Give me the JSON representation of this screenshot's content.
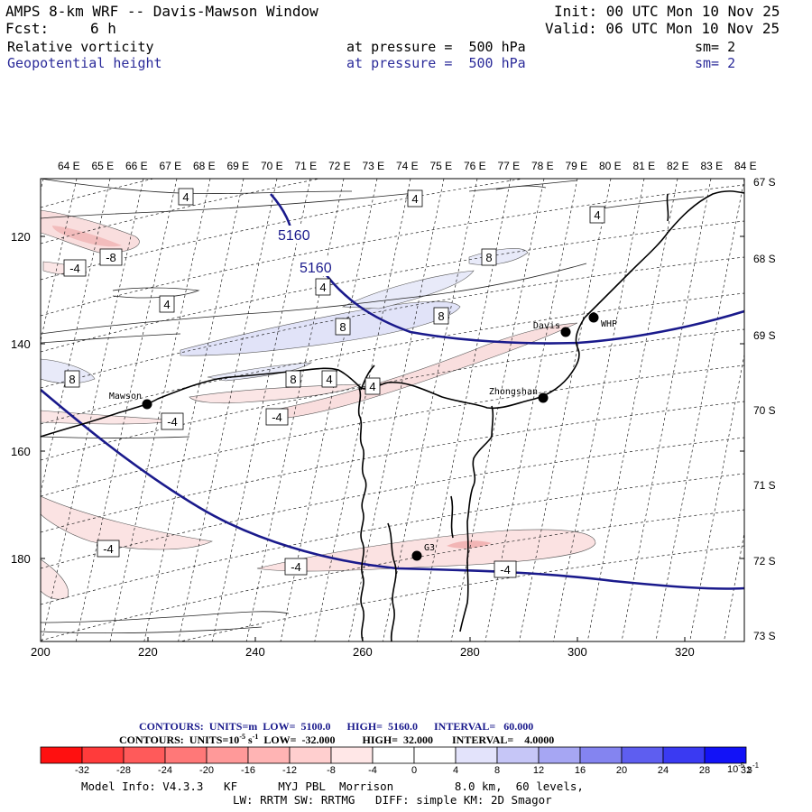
{
  "header": {
    "title": "AMPS 8-km WRF -- Davis-Mawson Window",
    "forecast_label": "Fcst:",
    "forecast_value": "6 h",
    "init": "Init: 00 UTC Mon 10 Nov 25",
    "valid": "Valid: 06 UTC Mon 10 Nov 25",
    "field1_name": "Relative vorticity",
    "field1_level": "at pressure =  500 hPa",
    "field1_sm": "sm= 2",
    "field2_name": "Geopotential height",
    "field2_level": "at pressure =  500 hPa",
    "field2_sm": "sm= 2"
  },
  "map": {
    "lon_labels": [
      "64 E",
      "65 E",
      "66 E",
      "67 E",
      "68 E",
      "69 E",
      "70 E",
      "71 E",
      "72 E",
      "73 E",
      "74 E",
      "75 E",
      "76 E",
      "77 E",
      "78 E",
      "79 E",
      "80 E",
      "81 E",
      "82 E",
      "83 E",
      "84 E"
    ],
    "lat_labels": [
      "67 S",
      "68 S",
      "69 S",
      "70 S",
      "71 S",
      "72 S",
      "73 S"
    ],
    "y_ticks": [
      "120",
      "140",
      "160",
      "180"
    ],
    "x_ticks": [
      "200",
      "220",
      "240",
      "260",
      "280",
      "300",
      "320"
    ],
    "stations": [
      {
        "name": "Mawson"
      },
      {
        "name": "Davis"
      },
      {
        "name": "WHP"
      },
      {
        "name": "Zhongshan"
      },
      {
        "name": "G3"
      }
    ],
    "height_contour_labels": [
      "5160",
      "5160"
    ],
    "vorticity_labels": [
      "4",
      "4",
      "4",
      "4",
      "4",
      "4",
      "4",
      "8",
      "8",
      "8",
      "8",
      "8",
      "-4",
      "-8",
      "-4",
      "-4",
      "-4",
      "-4",
      "-4"
    ],
    "colors": {
      "height_contour": "#1a1a8c",
      "coast": "#000000",
      "positive_shade": "#dde0f7",
      "negative_shade": "#f9dcdc"
    }
  },
  "colorbar": {
    "contours_line1": "CONTOURS:  UNITS=m  LOW=  5100.0      HIGH=  5160.0      INTERVAL=   60.000",
    "contours_line2_a": "CONTOURS:  UNITS=10",
    "contours_line2_exp": "-5",
    "contours_line2_b": " s",
    "contours_line2_exp2": "-1",
    "contours_line2_c": "  LOW=  -32.000          HIGH=  32.000       INTERVAL=    4.0000",
    "ticks": [
      "-32",
      "-28",
      "-24",
      "-20",
      "-16",
      "-12",
      "-8",
      "-4",
      "0",
      "4",
      "8",
      "12",
      "16",
      "20",
      "24",
      "28",
      "32"
    ],
    "units_a": "10",
    "units_exp": "-5",
    "units_b": " s",
    "units_exp2": "-1",
    "colors": [
      "#ff1010",
      "#ff3b3b",
      "#ff5a5a",
      "#ff7878",
      "#ff9999",
      "#ffb4b4",
      "#ffcfcf",
      "#ffe7e7",
      "#ffffff",
      "#ffffff",
      "#e3e3fb",
      "#c6c6f7",
      "#a6a6f3",
      "#8484f0",
      "#5e5ef0",
      "#3a3af2",
      "#1212f7"
    ]
  },
  "footer": {
    "line1": "Model Info: V4.3.3   KF      MYJ PBL  Morrison         8.0 km,  60 levels,",
    "line2": "LW: RRTM SW: RRTMG   DIFF: simple KM: 2D Smagor"
  }
}
